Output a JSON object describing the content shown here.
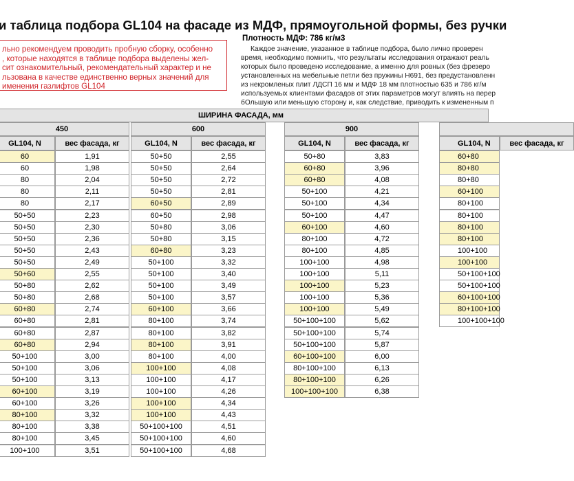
{
  "header": {
    "title": "и таблица подбора GL104 на фасаде из МДФ, прямоугольной формы, без ручки"
  },
  "notice": {
    "lines": [
      "льно рекомендуем проводить пробную сборку, особенно",
      ", которые находятся в таблице подбора выделены жел-",
      "сит ознакомительный, рекомендательный характер и не",
      "льзована в качестве единственно верных значений для",
      "именения газлифтов GL104"
    ]
  },
  "info": {
    "density": "Плотность МДФ: 786 кг/м3",
    "lines": [
      "Каждое значение, указанное в таблице подбора, было лично проверен",
      "время, необходимо помнить, что результаты исследования отражают реаль",
      "которых было проведено исследование, а именно для ровных (без фрезеро",
      "установленных на мебельные петли без пружины H691, без предустановленн",
      "из некромленых плит ЛДСП 16 мм и МДФ 18 мм плотностью 635 и 786 кг/м",
      "используемых клиентами фасадов от этих параметров могут влиять на перер",
      "бОльшую или меньшую сторону и, как следствие, приводить к измененным п"
    ]
  },
  "table": {
    "title": "ШИРИНА ФАСАДА, мм",
    "col_headers": [
      "GL104, N",
      "вес фасада, кг"
    ],
    "groups": [
      {
        "width": "450",
        "rows": [
          {
            "gl": "60",
            "weight": "1,91",
            "highlight": true
          },
          {
            "gl": "60",
            "weight": "1,98"
          },
          {
            "gl": "80",
            "weight": "2,04"
          },
          {
            "gl": "80",
            "weight": "2,11"
          },
          {
            "gl": "80",
            "weight": "2,17"
          },
          {
            "gl": "50+50",
            "weight": "2,23"
          },
          {
            "gl": "50+50",
            "weight": "2,30"
          },
          {
            "gl": "50+50",
            "weight": "2,36"
          },
          {
            "gl": "50+50",
            "weight": "2,43"
          },
          {
            "gl": "50+50",
            "weight": "2,49"
          },
          {
            "gl": "50+60",
            "weight": "2,55",
            "highlight": true
          },
          {
            "gl": "50+80",
            "weight": "2,62"
          },
          {
            "gl": "50+80",
            "weight": "2,68"
          },
          {
            "gl": "60+80",
            "weight": "2,74",
            "highlight": true
          },
          {
            "gl": "60+80",
            "weight": "2,81"
          },
          {
            "gl": "60+80",
            "weight": "2,87"
          },
          {
            "gl": "60+80",
            "weight": "2,94",
            "highlight": true
          },
          {
            "gl": "50+100",
            "weight": "3,00"
          },
          {
            "gl": "50+100",
            "weight": "3,06"
          },
          {
            "gl": "50+100",
            "weight": "3,13"
          },
          {
            "gl": "60+100",
            "weight": "3,19",
            "highlight": true
          },
          {
            "gl": "60+100",
            "weight": "3,26"
          },
          {
            "gl": "80+100",
            "weight": "3,32",
            "highlight": true
          },
          {
            "gl": "80+100",
            "weight": "3,38"
          },
          {
            "gl": "80+100",
            "weight": "3,45"
          },
          {
            "gl": "100+100",
            "weight": "3,51"
          }
        ]
      },
      {
        "width": "600",
        "rows": [
          {
            "gl": "50+50",
            "weight": "2,55"
          },
          {
            "gl": "50+50",
            "weight": "2,64"
          },
          {
            "gl": "50+50",
            "weight": "2,72"
          },
          {
            "gl": "50+50",
            "weight": "2,81"
          },
          {
            "gl": "60+50",
            "weight": "2,89",
            "highlight": true
          },
          {
            "gl": "60+50",
            "weight": "2,98"
          },
          {
            "gl": "50+80",
            "weight": "3,06"
          },
          {
            "gl": "50+80",
            "weight": "3,15"
          },
          {
            "gl": "60+80",
            "weight": "3,23",
            "highlight": true
          },
          {
            "gl": "50+100",
            "weight": "3,32"
          },
          {
            "gl": "50+100",
            "weight": "3,40"
          },
          {
            "gl": "50+100",
            "weight": "3,49"
          },
          {
            "gl": "50+100",
            "weight": "3,57"
          },
          {
            "gl": "60+100",
            "weight": "3,66",
            "highlight": true
          },
          {
            "gl": "80+100",
            "weight": "3,74"
          },
          {
            "gl": "80+100",
            "weight": "3,82"
          },
          {
            "gl": "80+100",
            "weight": "3,91",
            "highlight": true
          },
          {
            "gl": "80+100",
            "weight": "4,00"
          },
          {
            "gl": "100+100",
            "weight": "4,08",
            "highlight": true
          },
          {
            "gl": "100+100",
            "weight": "4,17"
          },
          {
            "gl": "100+100",
            "weight": "4,26"
          },
          {
            "gl": "100+100",
            "weight": "4,34",
            "highlight": true
          },
          {
            "gl": "100+100",
            "weight": "4,43",
            "highlight": true
          },
          {
            "gl": "50+100+100",
            "weight": "4,51"
          },
          {
            "gl": "50+100+100",
            "weight": "4,60"
          },
          {
            "gl": "50+100+100",
            "weight": "4,68"
          }
        ]
      },
      {
        "width": "900",
        "rows": [
          {
            "gl": "50+80",
            "weight": "3,83"
          },
          {
            "gl": "60+80",
            "weight": "3,96",
            "highlight": true
          },
          {
            "gl": "60+80",
            "weight": "4,08",
            "highlight": true
          },
          {
            "gl": "50+100",
            "weight": "4,21"
          },
          {
            "gl": "50+100",
            "weight": "4,34"
          },
          {
            "gl": "50+100",
            "weight": "4,47"
          },
          {
            "gl": "60+100",
            "weight": "4,60",
            "highlight": true
          },
          {
            "gl": "80+100",
            "weight": "4,72"
          },
          {
            "gl": "80+100",
            "weight": "4,85"
          },
          {
            "gl": "100+100",
            "weight": "4,98"
          },
          {
            "gl": "100+100",
            "weight": "5,11"
          },
          {
            "gl": "100+100",
            "weight": "5,23",
            "highlight": true
          },
          {
            "gl": "100+100",
            "weight": "5,36"
          },
          {
            "gl": "100+100",
            "weight": "5,49",
            "highlight": true
          },
          {
            "gl": "50+100+100",
            "weight": "5,62"
          },
          {
            "gl": "50+100+100",
            "weight": "5,74"
          },
          {
            "gl": "50+100+100",
            "weight": "5,87"
          },
          {
            "gl": "60+100+100",
            "weight": "6,00",
            "highlight": true
          },
          {
            "gl": "80+100+100",
            "weight": "6,13"
          },
          {
            "gl": "80+100+100",
            "weight": "6,26",
            "highlight": true
          },
          {
            "gl": "100+100+100",
            "weight": "6,38",
            "highlight": true
          }
        ]
      },
      {
        "rows": [
          {
            "gl": "60+80",
            "highlight": true
          },
          {
            "gl": "80+80",
            "highlight": true
          },
          {
            "gl": "80+80"
          },
          {
            "gl": "60+100",
            "highlight": true
          },
          {
            "gl": "80+100"
          },
          {
            "gl": "80+100"
          },
          {
            "gl": "80+100",
            "highlight": true
          },
          {
            "gl": "80+100",
            "highlight": true
          },
          {
            "gl": "100+100"
          },
          {
            "gl": "100+100",
            "highlight": true
          },
          {
            "gl": "50+100+100"
          },
          {
            "gl": "50+100+100"
          },
          {
            "gl": "60+100+100",
            "highlight": true
          },
          {
            "gl": "80+100+100",
            "highlight": true
          },
          {
            "gl": "100+100+100"
          }
        ]
      }
    ]
  }
}
